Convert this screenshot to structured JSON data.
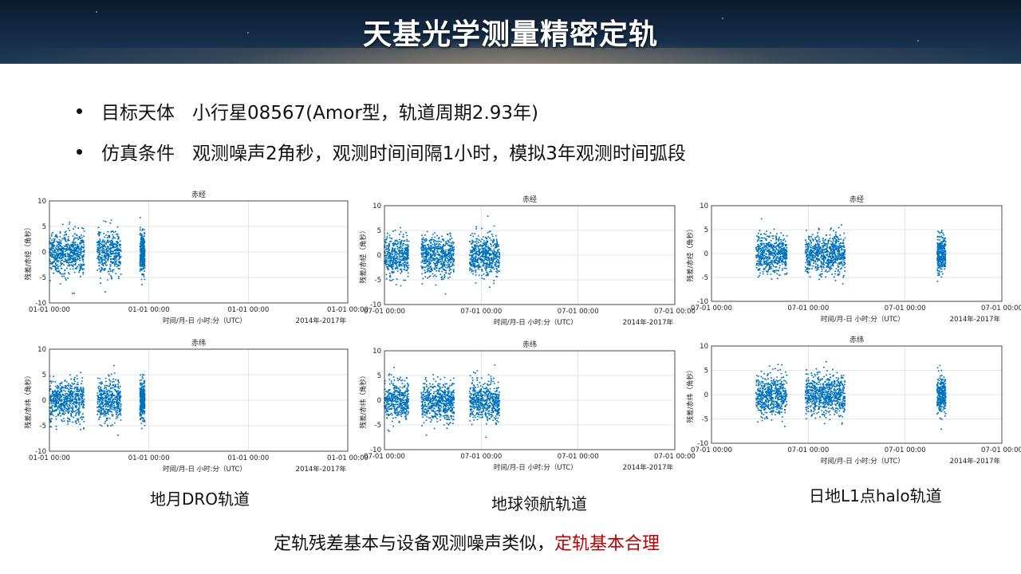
{
  "header": {
    "title": "天基光学测量精密定轨"
  },
  "bullets": [
    {
      "label": "目标天体",
      "text": "小行星08567(Amor型，轨道周期2.93年)"
    },
    {
      "label": "仿真条件",
      "text": "观测噪声2角秒，观测时间间隔1小时，模拟3年观测时间弧段"
    }
  ],
  "captions": {
    "dro": "地月DRO轨道",
    "earth_nav": "地球领航轨道",
    "l1_halo": "日地L1点halo轨道"
  },
  "conclusion": {
    "text": "定轨残差基本与设备观测噪声类似，",
    "highlight": "定轨基本合理"
  },
  "colors": {
    "marker": "#0072bd",
    "highlight": "#c00000"
  },
  "chart_data": [
    {
      "id": "dro-ra",
      "type": "scatter",
      "title": "赤经",
      "ylabel": "残差/赤经（角秒）",
      "xlabel": "时间/月-日 小时:分（UTC）",
      "xnote": "2014年-2017年",
      "xticks": [
        "01-01 00:00",
        "01-01 00:00",
        "01-01 00:00",
        "01-01 00:00"
      ],
      "yticks": [
        -10,
        -5,
        0,
        5,
        10
      ],
      "ylim": [
        -10,
        10
      ],
      "grid": true,
      "segments": [
        [
          0.0,
          0.35
        ],
        [
          0.48,
          0.72
        ],
        [
          0.91,
          0.96
        ]
      ],
      "noise_std": 2,
      "outlier_max": 8
    },
    {
      "id": "earth-nav-ra",
      "type": "scatter",
      "title": "赤经",
      "ylabel": "残差/赤经（角秒）",
      "xlabel": "时间/月-日 小时:分（UTC）",
      "xnote": "2014年-2017年",
      "xticks": [
        "07-01 00:00",
        "07-01 00:00",
        "07-01 00:00",
        "07-01 00:00"
      ],
      "yticks": [
        -10,
        -5,
        0,
        5,
        10
      ],
      "ylim": [
        -10,
        10
      ],
      "grid": true,
      "segments": [
        [
          0.0,
          0.25
        ],
        [
          0.38,
          0.72
        ],
        [
          0.88,
          1.19
        ]
      ],
      "noise_std": 2,
      "outlier_max": 8
    },
    {
      "id": "l1-halo-ra",
      "type": "scatter",
      "title": "赤经",
      "ylabel": "残差/赤经（角秒）",
      "xlabel": "时间/月-日 小时:分（UTC）",
      "xnote": "2014年-2017年",
      "xticks": [
        "07-01 00:00",
        "07-01 00:00",
        "07-01 00:00",
        "07-01 00:00"
      ],
      "yticks": [
        -10,
        -5,
        0,
        5,
        10
      ],
      "ylim": [
        -10,
        10
      ],
      "grid": true,
      "segments": [
        [
          0.46,
          0.78
        ],
        [
          0.97,
          1.38
        ],
        [
          2.33,
          2.42
        ]
      ],
      "noise_std": 2,
      "outlier_max": 8
    },
    {
      "id": "dro-dec",
      "type": "scatter",
      "title": "赤纬",
      "ylabel": "残差/赤纬（角秒）",
      "xlabel": "时间/月-日 小时:分（UTC）",
      "xnote": "2014年-2017年",
      "xticks": [
        "01-01 00:00",
        "01-01 00:00",
        "01-01 00:00",
        "01-01 00:00"
      ],
      "yticks": [
        -10,
        -5,
        0,
        5,
        10
      ],
      "ylim": [
        -10,
        10
      ],
      "grid": true,
      "segments": [
        [
          0.0,
          0.35
        ],
        [
          0.48,
          0.72
        ],
        [
          0.91,
          0.96
        ]
      ],
      "noise_std": 2,
      "outlier_max": 8
    },
    {
      "id": "earth-nav-dec",
      "type": "scatter",
      "title": "赤纬",
      "ylabel": "残差/赤纬（角秒）",
      "xlabel": "时间/月-日 小时:分（UTC）",
      "xnote": "2014年-2017年",
      "xticks": [
        "07-01 00:00",
        "07-01 00:00",
        "07-01 00:00",
        "07-01 00:00"
      ],
      "yticks": [
        -10,
        -5,
        0,
        5,
        10
      ],
      "ylim": [
        -10,
        10
      ],
      "grid": true,
      "segments": [
        [
          0.0,
          0.25
        ],
        [
          0.38,
          0.72
        ],
        [
          0.88,
          1.19
        ]
      ],
      "noise_std": 2,
      "outlier_max": 8
    },
    {
      "id": "l1-halo-dec",
      "type": "scatter",
      "title": "赤纬",
      "ylabel": "残差/赤纬（角秒）",
      "xlabel": "时间/月-日 小时:分（UTC）",
      "xnote": "2014年-2017年",
      "xticks": [
        "07-01 00:00",
        "07-01 00:00",
        "07-01 00:00",
        "07-01 00:00"
      ],
      "yticks": [
        -10,
        -5,
        0,
        5,
        10
      ],
      "ylim": [
        -10,
        10
      ],
      "grid": true,
      "segments": [
        [
          0.46,
          0.78
        ],
        [
          0.97,
          1.38
        ],
        [
          2.33,
          2.42
        ]
      ],
      "noise_std": 2,
      "outlier_max": 8
    }
  ]
}
